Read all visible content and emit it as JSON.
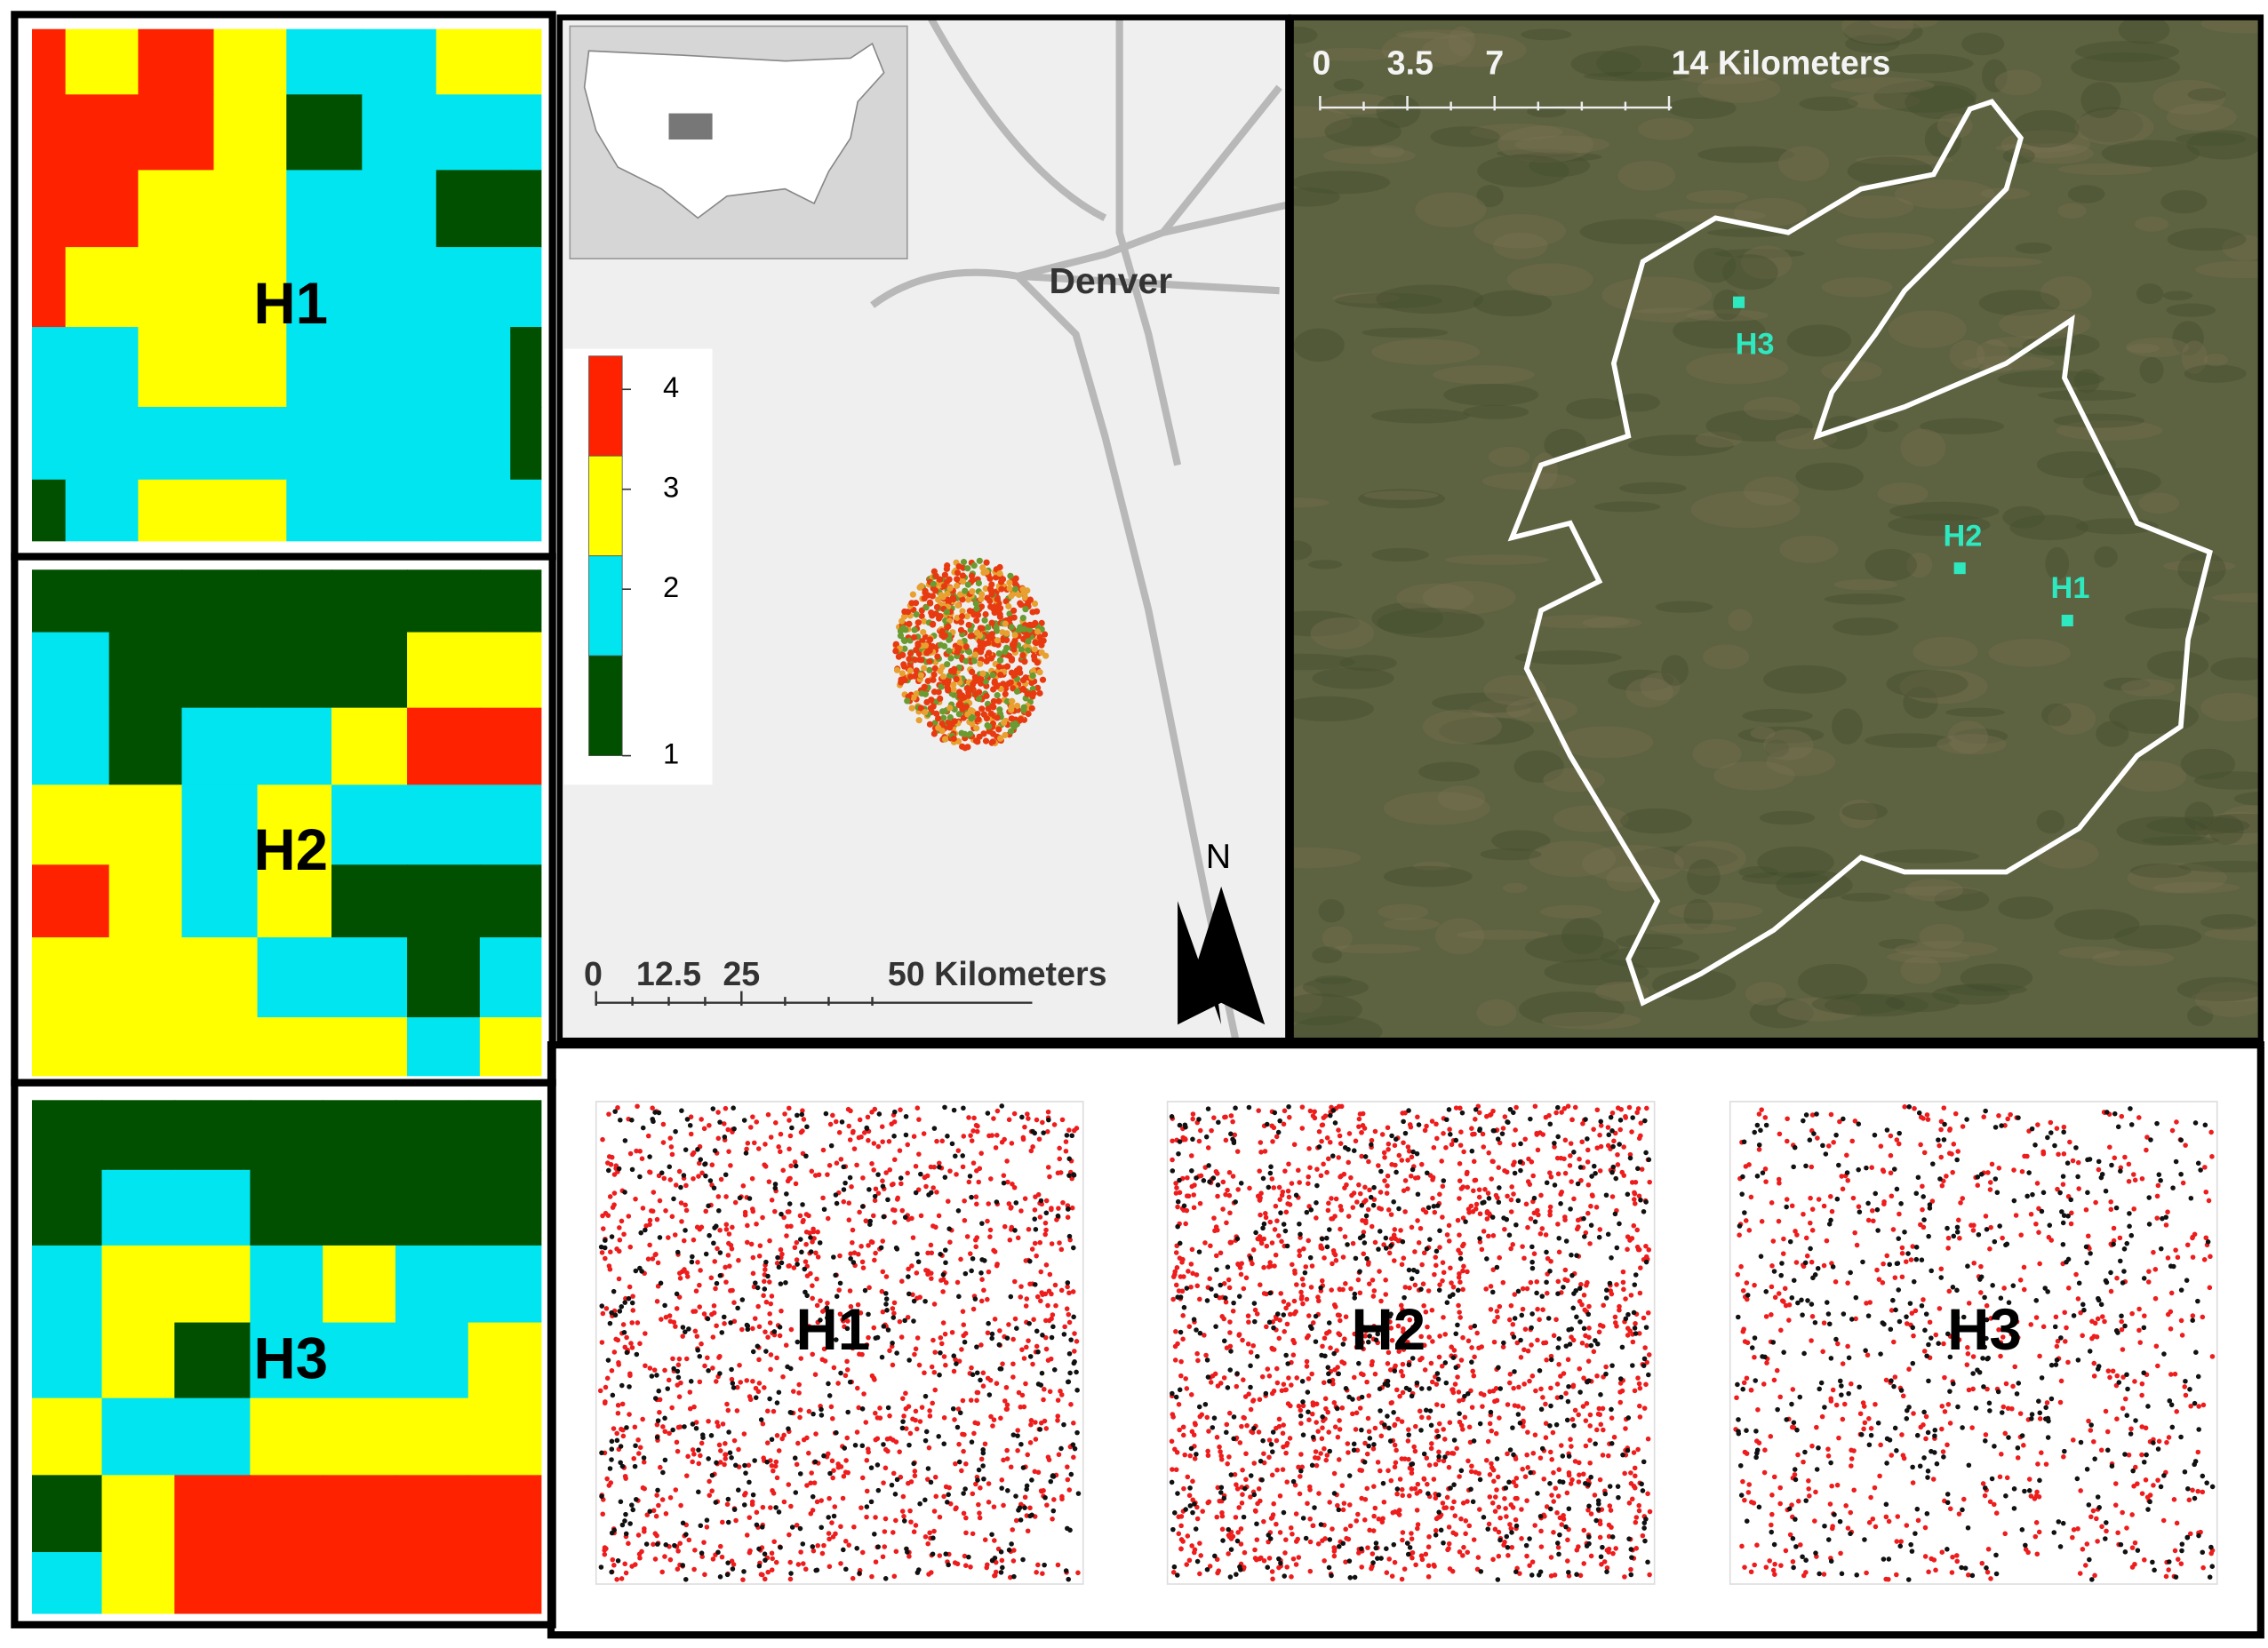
{
  "inset_map": {
    "city": "Denver",
    "north": "N",
    "scale_bar": {
      "ticks": [
        0,
        12.5,
        25
      ],
      "unit_label": "50 Kilometers"
    },
    "legend": {
      "classes": [
        {
          "value": 4,
          "color": "#ff2200"
        },
        {
          "value": 3,
          "color": "#ffff00"
        },
        {
          "value": 2,
          "color": "#00e5f0"
        },
        {
          "value": 1,
          "color": "#005000"
        }
      ]
    }
  },
  "grids": [
    {
      "label": "H1",
      "cells": [
        [
          4,
          3,
          4,
          3,
          2,
          2,
          3,
          3
        ],
        [
          4,
          4,
          4,
          3,
          1,
          2,
          2,
          2
        ],
        [
          4,
          4,
          3,
          3,
          2,
          2,
          1,
          1
        ],
        [
          4,
          3,
          3,
          3,
          2,
          2,
          2,
          2
        ],
        [
          2,
          2,
          3,
          3,
          2,
          2,
          2,
          1
        ],
        [
          2,
          2,
          2,
          2,
          2,
          2,
          2,
          1
        ],
        [
          1,
          2,
          3,
          3,
          2,
          2,
          2,
          2
        ]
      ]
    },
    {
      "label": "H2",
      "cells": [
        [
          1,
          1,
          1,
          1,
          1,
          1,
          1
        ],
        [
          2,
          1,
          1,
          1,
          1,
          3,
          3
        ],
        [
          2,
          1,
          2,
          2,
          3,
          4,
          4
        ],
        [
          3,
          3,
          2,
          3,
          2,
          2,
          2
        ],
        [
          4,
          3,
          2,
          3,
          1,
          1,
          1
        ],
        [
          3,
          3,
          3,
          2,
          2,
          1,
          2
        ],
        [
          3,
          3,
          3,
          3,
          3,
          2,
          3
        ]
      ]
    },
    {
      "label": "H3",
      "cells": [
        [
          1,
          1,
          1,
          1,
          1,
          1,
          1
        ],
        [
          1,
          2,
          2,
          1,
          1,
          1,
          1
        ],
        [
          2,
          3,
          3,
          2,
          3,
          2,
          2
        ],
        [
          2,
          3,
          1,
          2,
          2,
          2,
          3
        ],
        [
          3,
          2,
          2,
          3,
          3,
          3,
          3
        ],
        [
          1,
          3,
          4,
          4,
          4,
          4,
          4
        ],
        [
          2,
          3,
          4,
          4,
          4,
          4,
          4
        ]
      ]
    }
  ],
  "satellite": {
    "scale_bar": {
      "ticks": [
        0,
        3.5,
        7
      ],
      "unit_label": "14 Kilometers"
    },
    "sites": [
      {
        "label": "H3"
      },
      {
        "label": "H2"
      },
      {
        "label": "H1"
      }
    ]
  },
  "point_patterns": [
    {
      "label": "H1"
    },
    {
      "label": "H2"
    },
    {
      "label": "H3"
    }
  ]
}
